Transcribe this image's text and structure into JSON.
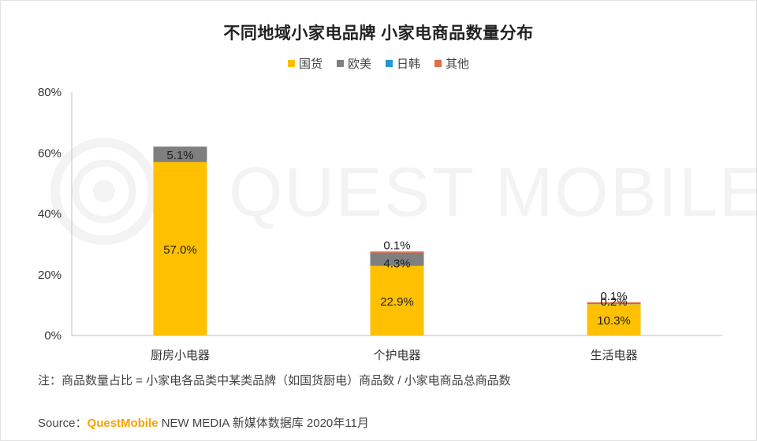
{
  "watermark": "QUEST MOBILE",
  "footer": {
    "note": "注：商品数量占比 = 小家电各品类中某类品牌（如国货厨电）商品数 / 小家电商品总商品数",
    "source_label": "Source：",
    "source_brand": "QuestMobile",
    "source_rest": " NEW MEDIA 新媒体数据库 2020年11月"
  },
  "chart_data": {
    "type": "bar",
    "stacked": true,
    "title": "不同地域小家电品牌 小家电商品数量分布",
    "categories": [
      "厨房小电器",
      "个护电器",
      "生活电器"
    ],
    "series": [
      {
        "name": "国货",
        "values": [
          57.0,
          22.9,
          10.3
        ],
        "labels": [
          "57.0%",
          "22.9%",
          "10.3%"
        ],
        "color": "#ffc000"
      },
      {
        "name": "欧美",
        "values": [
          5.1,
          4.3,
          0.0
        ],
        "labels": [
          "5.1%",
          "4.3%",
          ""
        ],
        "color": "#7f7f7f"
      },
      {
        "name": "日韩",
        "values": [
          0.0,
          0.0,
          0.2
        ],
        "labels": [
          "",
          "",
          "0.2%"
        ],
        "color": "#1f9bd1"
      },
      {
        "name": "其他",
        "values": [
          0.0,
          0.1,
          0.1
        ],
        "labels": [
          "",
          "0.1%",
          "0.1%"
        ],
        "color": "#e26b4a"
      }
    ],
    "yticks": [
      "0%",
      "20%",
      "40%",
      "60%",
      "80%"
    ],
    "ylim": [
      0,
      80
    ],
    "legend": "top-center",
    "grid": false
  }
}
